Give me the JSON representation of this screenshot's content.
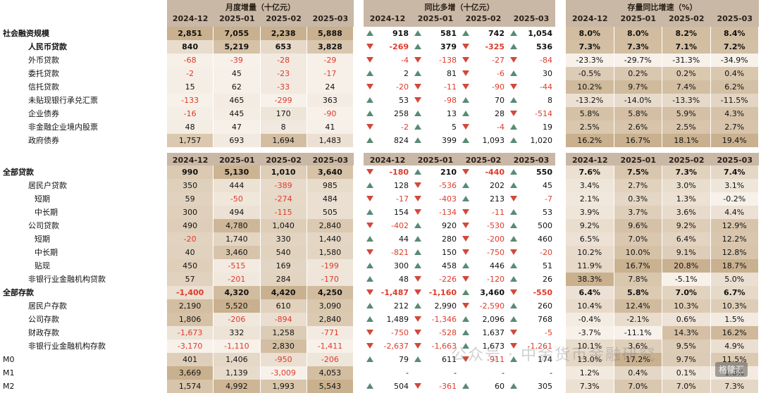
{
  "sections": {
    "monthly": {
      "title": "月度增量（十亿元）"
    },
    "yoy": {
      "title": "同比多增（十亿元）"
    },
    "growth": {
      "title": "存量同比增速（%）"
    }
  },
  "periods": [
    "2024-12",
    "2025-01",
    "2025-02",
    "2025-03"
  ],
  "table1": [
    {
      "label": "社会融资规模",
      "indent": 0,
      "bold": true,
      "monthly": [
        "2,851",
        "7,055",
        "2,238",
        "5,888"
      ],
      "yoy": [
        [
          "918",
          "up"
        ],
        [
          "581",
          "up"
        ],
        [
          "742",
          "up"
        ],
        [
          "1,054",
          "up"
        ]
      ],
      "growth": [
        "8.0%",
        "8.0%",
        "8.2%",
        "8.4%"
      ]
    },
    {
      "label": "人民币贷款",
      "indent": 1,
      "bold": true,
      "monthly": [
        "840",
        "5,219",
        "653",
        "3,828"
      ],
      "yoy": [
        [
          "-269",
          "down"
        ],
        [
          "379",
          "up"
        ],
        [
          "-325",
          "down"
        ],
        [
          "536",
          "up"
        ]
      ],
      "growth": [
        "7.3%",
        "7.3%",
        "7.1%",
        "7.2%"
      ]
    },
    {
      "label": "外币贷款",
      "indent": 1,
      "bold": false,
      "monthly": [
        "-68",
        "-39",
        "-28",
        "-29"
      ],
      "yoy": [
        [
          "-4",
          "down"
        ],
        [
          "-138",
          "down"
        ],
        [
          "-27",
          "down"
        ],
        [
          "-84",
          "down"
        ]
      ],
      "growth": [
        "-23.3%",
        "-29.7%",
        "-31.3%",
        "-34.9%"
      ]
    },
    {
      "label": "委托贷款",
      "indent": 1,
      "bold": false,
      "monthly": [
        "-2",
        "45",
        "-23",
        "-17"
      ],
      "yoy": [
        [
          "2",
          "up"
        ],
        [
          "81",
          "up"
        ],
        [
          "-6",
          "down"
        ],
        [
          "30",
          "up"
        ]
      ],
      "growth": [
        "-0.5%",
        "0.2%",
        "0.2%",
        "0.4%"
      ]
    },
    {
      "label": "信托贷款",
      "indent": 1,
      "bold": false,
      "monthly": [
        "15",
        "62",
        "-33",
        "24"
      ],
      "yoy": [
        [
          "-20",
          "down"
        ],
        [
          "-11",
          "down"
        ],
        [
          "-90",
          "down"
        ],
        [
          "-44",
          "down"
        ]
      ],
      "growth": [
        "10.2%",
        "9.7%",
        "7.4%",
        "6.2%"
      ]
    },
    {
      "label": "未贴现银行承兑汇票",
      "indent": 1,
      "bold": false,
      "monthly": [
        "-133",
        "465",
        "-299",
        "363"
      ],
      "yoy": [
        [
          "53",
          "up"
        ],
        [
          "-98",
          "down"
        ],
        [
          "70",
          "up"
        ],
        [
          "8",
          "up"
        ]
      ],
      "growth": [
        "-13.2%",
        "-14.0%",
        "-13.3%",
        "-11.5%"
      ]
    },
    {
      "label": "企业债券",
      "indent": 1,
      "bold": false,
      "monthly": [
        "-16",
        "445",
        "170",
        "-90"
      ],
      "yoy": [
        [
          "258",
          "up"
        ],
        [
          "13",
          "up"
        ],
        [
          "28",
          "up"
        ],
        [
          "-514",
          "down"
        ]
      ],
      "growth": [
        "5.8%",
        "5.8%",
        "5.9%",
        "4.3%"
      ]
    },
    {
      "label": "非金融企业境内股票",
      "indent": 1,
      "bold": false,
      "monthly": [
        "48",
        "47",
        "8",
        "41"
      ],
      "yoy": [
        [
          "-2",
          "down"
        ],
        [
          "5",
          "up"
        ],
        [
          "-4",
          "down"
        ],
        [
          "19",
          "up"
        ]
      ],
      "growth": [
        "2.5%",
        "2.6%",
        "2.5%",
        "2.7%"
      ]
    },
    {
      "label": "政府债券",
      "indent": 1,
      "bold": false,
      "monthly": [
        "1,757",
        "693",
        "1,694",
        "1,483"
      ],
      "yoy": [
        [
          "824",
          "up"
        ],
        [
          "399",
          "up"
        ],
        [
          "1,093",
          "up"
        ],
        [
          "1,020",
          "up"
        ]
      ],
      "growth": [
        "16.2%",
        "16.7%",
        "18.1%",
        "19.4%"
      ]
    }
  ],
  "table2": [
    {
      "label": "全部贷款",
      "indent": 0,
      "bold": true,
      "monthly": [
        "990",
        "5,130",
        "1,010",
        "3,640"
      ],
      "yoy": [
        [
          "-180",
          "down"
        ],
        [
          "210",
          "up"
        ],
        [
          "-440",
          "down"
        ],
        [
          "550",
          "up"
        ]
      ],
      "growth": [
        "7.6%",
        "7.5%",
        "7.3%",
        "7.4%"
      ]
    },
    {
      "label": "居民户贷款",
      "indent": 1,
      "bold": false,
      "monthly": [
        "350",
        "444",
        "-389",
        "985"
      ],
      "yoy": [
        [
          "128",
          "up"
        ],
        [
          "-536",
          "down"
        ],
        [
          "202",
          "up"
        ],
        [
          "45",
          "up"
        ]
      ],
      "growth": [
        "3.4%",
        "2.7%",
        "3.0%",
        "3.1%"
      ]
    },
    {
      "label": "短期",
      "indent": 2,
      "bold": false,
      "monthly": [
        "59",
        "-50",
        "-274",
        "484"
      ],
      "yoy": [
        [
          "-17",
          "down"
        ],
        [
          "-403",
          "down"
        ],
        [
          "213",
          "up"
        ],
        [
          "-7",
          "down"
        ]
      ],
      "growth": [
        "2.1%",
        "0.3%",
        "1.3%",
        "-0.2%"
      ]
    },
    {
      "label": "中长期",
      "indent": 3,
      "bold": false,
      "monthly": [
        "300",
        "494",
        "-115",
        "505"
      ],
      "yoy": [
        [
          "154",
          "up"
        ],
        [
          "-134",
          "down"
        ],
        [
          "-11",
          "down"
        ],
        [
          "53",
          "up"
        ]
      ],
      "growth": [
        "3.9%",
        "3.7%",
        "3.6%",
        "4.4%"
      ]
    },
    {
      "label": "公司贷款",
      "indent": 1,
      "bold": false,
      "monthly": [
        "490",
        "4,780",
        "1,040",
        "2,840"
      ],
      "yoy": [
        [
          "-402",
          "down"
        ],
        [
          "920",
          "up"
        ],
        [
          "-530",
          "down"
        ],
        [
          "500",
          "up"
        ]
      ],
      "growth": [
        "9.2%",
        "9.6%",
        "9.2%",
        "12.9%"
      ]
    },
    {
      "label": "短期",
      "indent": 2,
      "bold": false,
      "monthly": [
        "-20",
        "1,740",
        "330",
        "1,440"
      ],
      "yoy": [
        [
          "44",
          "up"
        ],
        [
          "280",
          "up"
        ],
        [
          "-200",
          "down"
        ],
        [
          "460",
          "up"
        ]
      ],
      "growth": [
        "6.5%",
        "7.0%",
        "6.4%",
        "12.2%"
      ]
    },
    {
      "label": "中长期",
      "indent": 2,
      "bold": false,
      "monthly": [
        "40",
        "3,460",
        "540",
        "1,580"
      ],
      "yoy": [
        [
          "-821",
          "down"
        ],
        [
          "150",
          "up"
        ],
        [
          "-750",
          "down"
        ],
        [
          "-20",
          "down"
        ]
      ],
      "growth": [
        "10.2%",
        "10.0%",
        "9.1%",
        "12.8%"
      ]
    },
    {
      "label": "贴现",
      "indent": 3,
      "bold": false,
      "monthly": [
        "450",
        "-515",
        "169",
        "-199"
      ],
      "yoy": [
        [
          "300",
          "up"
        ],
        [
          "458",
          "up"
        ],
        [
          "446",
          "up"
        ],
        [
          "51",
          "up"
        ]
      ],
      "growth": [
        "11.9%",
        "16.7%",
        "20.8%",
        "18.7%"
      ]
    },
    {
      "label": "非银行业金融机构贷款",
      "indent": 1,
      "bold": false,
      "monthly": [
        "57",
        "-201",
        "284",
        "-170"
      ],
      "yoy": [
        [
          "48",
          "up"
        ],
        [
          "-226",
          "down"
        ],
        [
          "-120",
          "down"
        ],
        [
          "26",
          "up"
        ]
      ],
      "growth": [
        "38.3%",
        "7.8%",
        "-5.1%",
        "5.0%"
      ]
    },
    {
      "label": "全部存款",
      "indent": 0,
      "bold": true,
      "monthly": [
        "-1,400",
        "4,320",
        "4,420",
        "4,250"
      ],
      "yoy": [
        [
          "-1,487",
          "down"
        ],
        [
          "-1,160",
          "down"
        ],
        [
          "3,460",
          "up"
        ],
        [
          "-550",
          "down"
        ]
      ],
      "growth": [
        "6.4%",
        "5.8%",
        "7.0%",
        "6.7%"
      ]
    },
    {
      "label": "居民户存款",
      "indent": 1,
      "bold": false,
      "monthly": [
        "2,190",
        "5,520",
        "610",
        "3,090"
      ],
      "yoy": [
        [
          "212",
          "up"
        ],
        [
          "2,990",
          "up"
        ],
        [
          "-2,590",
          "down"
        ],
        [
          "260",
          "up"
        ]
      ],
      "growth": [
        "10.4%",
        "12.4%",
        "10.3%",
        "10.3%"
      ]
    },
    {
      "label": "公司存款",
      "indent": 1,
      "bold": false,
      "monthly": [
        "1,806",
        "-206",
        "-894",
        "2,840"
      ],
      "yoy": [
        [
          "1,489",
          "up"
        ],
        [
          "-1,346",
          "down"
        ],
        [
          "2,096",
          "up"
        ],
        [
          "768",
          "up"
        ]
      ],
      "growth": [
        "-0.4%",
        "-2.1%",
        "0.6%",
        "1.5%"
      ]
    },
    {
      "label": "财政存款",
      "indent": 1,
      "bold": false,
      "monthly": [
        "-1,673",
        "332",
        "1,258",
        "-771"
      ],
      "yoy": [
        [
          "-750",
          "down"
        ],
        [
          "-528",
          "down"
        ],
        [
          "1,637",
          "up"
        ],
        [
          "-5",
          "down"
        ]
      ],
      "growth": [
        "-3.7%",
        "-11.1%",
        "14.3%",
        "16.2%"
      ]
    },
    {
      "label": "非银行业金融机构存款",
      "indent": 1,
      "bold": false,
      "monthly": [
        "-3,170",
        "-1,110",
        "2,830",
        "-1,411"
      ],
      "yoy": [
        [
          "-2,637",
          "down"
        ],
        [
          "-1,663",
          "down"
        ],
        [
          "1,673",
          "up"
        ],
        [
          "-1,261",
          "down"
        ]
      ],
      "growth": [
        "10.1%",
        "3.6%",
        "9.5%",
        "4.9%"
      ]
    },
    {
      "label": "M0",
      "indent": 0,
      "bold": false,
      "monthly": [
        "401",
        "1,406",
        "-950",
        "-206"
      ],
      "yoy": [
        [
          "79",
          "up"
        ],
        [
          "611",
          "up"
        ],
        [
          "-911",
          "down"
        ],
        [
          "174",
          "up"
        ]
      ],
      "growth": [
        "13.0%",
        "17.2%",
        "9.7%",
        "11.5%"
      ]
    },
    {
      "label": "M1",
      "indent": 0,
      "bold": false,
      "monthly": [
        "3,669",
        "1,139",
        "-3,009",
        "4,053"
      ],
      "yoy": [
        [
          "-",
          "none"
        ],
        [
          "-",
          "none"
        ],
        [
          "-",
          "none"
        ],
        [
          "-",
          "none"
        ]
      ],
      "growth": [
        "1.2%",
        "0.4%",
        "0.1%",
        "1.6%"
      ]
    },
    {
      "label": "M2",
      "indent": 0,
      "bold": false,
      "monthly": [
        "1,574",
        "4,992",
        "1,993",
        "5,543"
      ],
      "yoy": [
        [
          "504",
          "up"
        ],
        [
          "-361",
          "down"
        ],
        [
          "60",
          "up"
        ],
        [
          "305",
          "up"
        ]
      ],
      "growth": [
        "7.3%",
        "7.0%",
        "7.0%",
        "7.3%"
      ]
    }
  ],
  "colors": {
    "header": "#c9b8a6",
    "pos_arrow": "#5a8a74",
    "neg_arrow": "#d2483a",
    "neg_text": "#e03a2a",
    "heat_low": "#f7f1ea",
    "heat_high": "#c9b08e"
  },
  "watermark": "公众号 · 中金货币金融研究",
  "corner_mark": "格隆汇"
}
